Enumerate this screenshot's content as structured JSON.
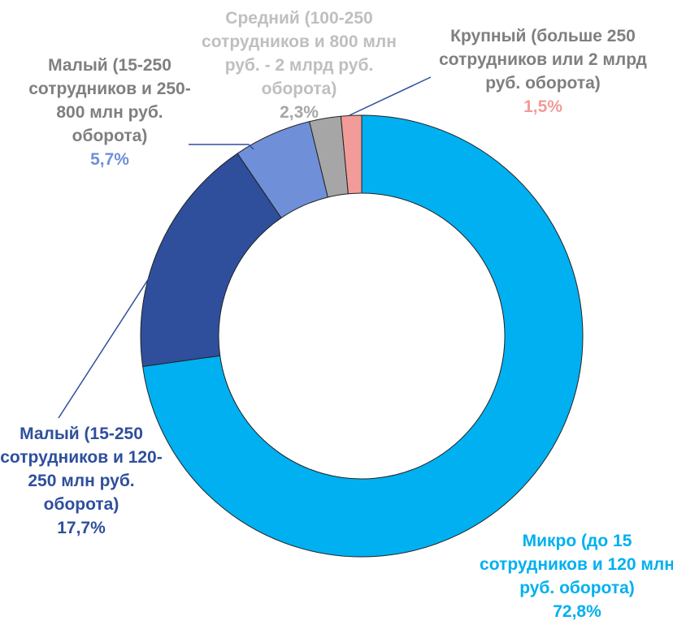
{
  "chart_data": {
    "type": "donut",
    "categories": [
      "Микро (до 15 сотрудников и 120 млн руб. оборота)",
      "Малый (15-250 сотрудников и 120-250 млн руб. оборота)",
      "Малый (15-250 сотрудников и 250-800 млн руб. оборота)",
      "Средний (100-250 сотрудников и 800 млн руб. - 2 млрд руб. оборота)",
      "Крупный (больше 250 сотрудников или 2 млрд руб. оборота)"
    ],
    "values": [
      72.8,
      17.7,
      5.7,
      2.3,
      1.5
    ],
    "value_labels": [
      "72,8%",
      "17,7%",
      "5,7%",
      "2,3%",
      "1,5%"
    ],
    "colors": [
      "#00b0f0",
      "#2f4f9c",
      "#6f8fd8",
      "#a6a6a6",
      "#f19c98"
    ],
    "label_colors": [
      "#00b0f0",
      "#2f4f9c",
      "#7f7f7f",
      "#bfbfbf",
      "#7f7f7f"
    ]
  }
}
